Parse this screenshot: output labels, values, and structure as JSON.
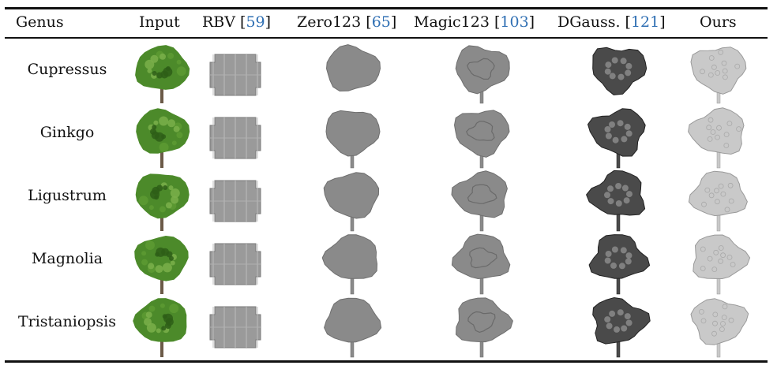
{
  "table": {
    "headers": [
      {
        "text": "Genus"
      },
      {
        "text": "Input"
      },
      {
        "text": "RBV [",
        "ref": "59",
        "tail": "]"
      },
      {
        "text": "Zero123 [",
        "ref": "65",
        "tail": "]"
      },
      {
        "text": "Magic123 [",
        "ref": "103",
        "tail": "]"
      },
      {
        "text": "DGauss. [",
        "ref": "121",
        "tail": "]"
      },
      {
        "text": "Ours"
      }
    ],
    "rows": [
      {
        "genus": "Cupressus"
      },
      {
        "genus": "Ginkgo"
      },
      {
        "genus": "Ligustrum"
      },
      {
        "genus": "Magnolia"
      },
      {
        "genus": "Tristaniopsis"
      }
    ]
  },
  "colors": {
    "rule": "#111111",
    "reference_link": "#2f6fb3",
    "mesh_gray": "#8a8a8a",
    "dgauss_dark": "#4a4a4a",
    "ours_light": "#c9c9c9",
    "foliage_green": "#4c8a2a",
    "trunk_brown": "#6b5a48"
  }
}
